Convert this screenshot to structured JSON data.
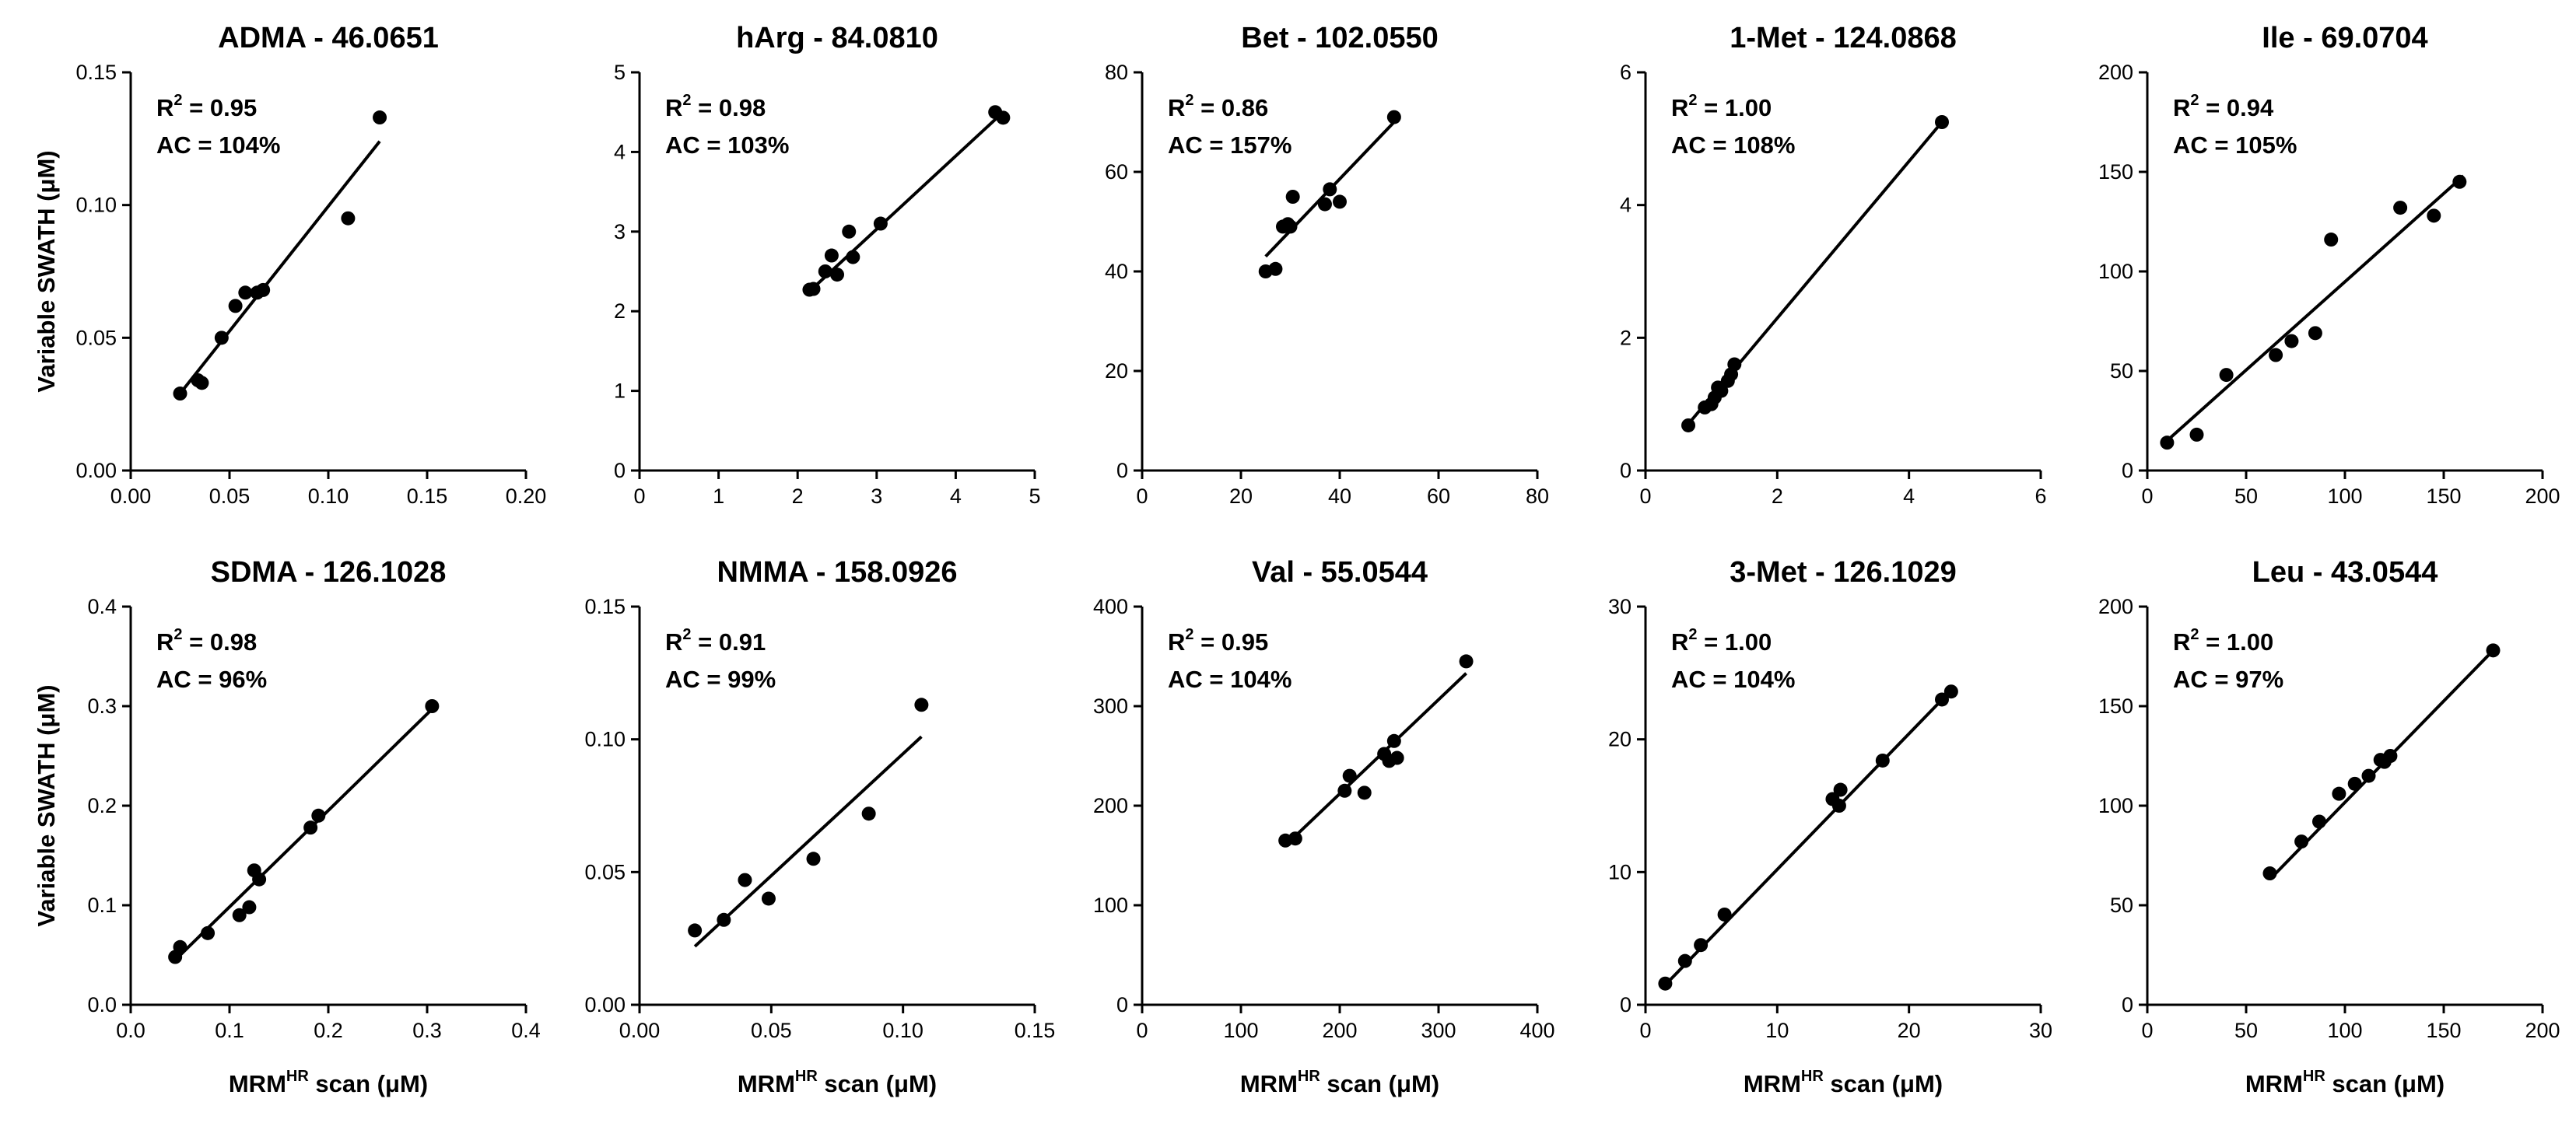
{
  "figure": {
    "xlabel_main": "MRM",
    "xlabel_sup": "HR",
    "xlabel_rest": " scan (μM)",
    "ylabel": "Variable SWATH (μM)"
  },
  "chart_data": [
    {
      "type": "scatter",
      "title": "ADMA - 46.0651",
      "r2_label": "R",
      "r2_sup": "2",
      "r2_value": " = 0.95",
      "ac": "AC = 104%",
      "xlim": [
        0,
        0.2
      ],
      "xticks": [
        0,
        0.05,
        0.1,
        0.15,
        0.2
      ],
      "xtick_labels": [
        "0.00",
        "0.05",
        "0.10",
        "0.15",
        "0.20"
      ],
      "ylim": [
        0,
        0.15
      ],
      "yticks": [
        0,
        0.05,
        0.1,
        0.15
      ],
      "ytick_labels": [
        "0.00",
        "0.05",
        "0.10",
        "0.15"
      ],
      "x": [
        0.025,
        0.034,
        0.036,
        0.046,
        0.053,
        0.058,
        0.064,
        0.067,
        0.11,
        0.126
      ],
      "y": [
        0.029,
        0.034,
        0.033,
        0.05,
        0.062,
        0.067,
        0.067,
        0.068,
        0.095,
        0.133
      ],
      "fit_x": [
        0.025,
        0.126
      ],
      "fit_y": [
        0.029,
        0.124
      ]
    },
    {
      "type": "scatter",
      "title": "hArg - 84.0810",
      "r2_label": "R",
      "r2_sup": "2",
      "r2_value": " = 0.98",
      "ac": "AC = 103%",
      "xlim": [
        0,
        5
      ],
      "xticks": [
        0,
        1,
        2,
        3,
        4,
        5
      ],
      "xtick_labels": [
        "0",
        "1",
        "2",
        "3",
        "4",
        "5"
      ],
      "ylim": [
        0,
        5
      ],
      "yticks": [
        0,
        1,
        2,
        3,
        4,
        5
      ],
      "ytick_labels": [
        "0",
        "1",
        "2",
        "3",
        "4",
        "5"
      ],
      "x": [
        2.15,
        2.2,
        2.35,
        2.43,
        2.5,
        2.65,
        2.7,
        3.05,
        4.5,
        4.6
      ],
      "y": [
        2.27,
        2.28,
        2.5,
        2.7,
        2.46,
        3.0,
        2.68,
        3.1,
        4.5,
        4.43
      ],
      "fit_x": [
        2.15,
        4.6
      ],
      "fit_y": [
        2.25,
        4.5
      ]
    },
    {
      "type": "scatter",
      "title": "Bet - 102.0550",
      "r2_label": "R",
      "r2_sup": "2",
      "r2_value": " = 0.86",
      "ac": "AC = 157%",
      "xlim": [
        0,
        80
      ],
      "xticks": [
        0,
        20,
        40,
        60,
        80
      ],
      "xtick_labels": [
        "0",
        "20",
        "40",
        "60",
        "80"
      ],
      "ylim": [
        0,
        80
      ],
      "yticks": [
        0,
        20,
        40,
        60,
        80
      ],
      "ytick_labels": [
        "0",
        "20",
        "40",
        "60",
        "80"
      ],
      "x": [
        25,
        27,
        28.5,
        29.5,
        30,
        30.5,
        37,
        38,
        40,
        51
      ],
      "y": [
        40,
        40.5,
        49,
        49.5,
        49,
        55,
        53.5,
        56.5,
        54,
        71
      ],
      "fit_x": [
        25,
        51
      ],
      "fit_y": [
        43,
        70
      ]
    },
    {
      "type": "scatter",
      "title": "1-Met - 124.0868",
      "r2_label": "R",
      "r2_sup": "2",
      "r2_value": " = 1.00",
      "ac": "AC = 108%",
      "xlim": [
        0,
        6
      ],
      "xticks": [
        0,
        2,
        4,
        6
      ],
      "xtick_labels": [
        "0",
        "2",
        "4",
        "6"
      ],
      "ylim": [
        0,
        6
      ],
      "yticks": [
        0,
        2,
        4,
        6
      ],
      "ytick_labels": [
        "0",
        "2",
        "4",
        "6"
      ],
      "x": [
        0.65,
        0.9,
        1.0,
        1.05,
        1.1,
        1.15,
        1.25,
        1.3,
        1.35,
        4.5
      ],
      "y": [
        0.68,
        0.95,
        1.0,
        1.1,
        1.25,
        1.2,
        1.35,
        1.45,
        1.6,
        5.25
      ],
      "fit_x": [
        0.65,
        4.5
      ],
      "fit_y": [
        0.7,
        5.25
      ]
    },
    {
      "type": "scatter",
      "title": "Ile - 69.0704",
      "r2_label": "R",
      "r2_sup": "2",
      "r2_value": " = 0.94",
      "ac": "AC = 105%",
      "xlim": [
        0,
        200
      ],
      "xticks": [
        0,
        50,
        100,
        150,
        200
      ],
      "xtick_labels": [
        "0",
        "50",
        "100",
        "150",
        "200"
      ],
      "ylim": [
        0,
        200
      ],
      "yticks": [
        0,
        50,
        100,
        150,
        200
      ],
      "ytick_labels": [
        "0",
        "50",
        "100",
        "150",
        "200"
      ],
      "x": [
        10,
        25,
        40,
        65,
        73,
        85,
        93,
        128,
        145,
        158
      ],
      "y": [
        14,
        18,
        48,
        58,
        65,
        69,
        116,
        132,
        128,
        145
      ],
      "fit_x": [
        10,
        160
      ],
      "fit_y": [
        15,
        148
      ]
    },
    {
      "type": "scatter",
      "title": "SDMA - 126.1028",
      "r2_label": "R",
      "r2_sup": "2",
      "r2_value": " = 0.98",
      "ac": "AC = 96%",
      "xlim": [
        0,
        0.4
      ],
      "xticks": [
        0,
        0.1,
        0.2,
        0.3,
        0.4
      ],
      "xtick_labels": [
        "0.0",
        "0.1",
        "0.2",
        "0.3",
        "0.4"
      ],
      "ylim": [
        0,
        0.4
      ],
      "yticks": [
        0,
        0.1,
        0.2,
        0.3,
        0.4
      ],
      "ytick_labels": [
        "0.0",
        "0.1",
        "0.2",
        "0.3",
        "0.4"
      ],
      "x": [
        0.045,
        0.05,
        0.078,
        0.11,
        0.12,
        0.125,
        0.13,
        0.182,
        0.19,
        0.305
      ],
      "y": [
        0.048,
        0.058,
        0.072,
        0.09,
        0.098,
        0.135,
        0.126,
        0.178,
        0.19,
        0.3
      ],
      "fit_x": [
        0.045,
        0.305
      ],
      "fit_y": [
        0.045,
        0.297
      ]
    },
    {
      "type": "scatter",
      "title": "NMMA - 158.0926",
      "r2_label": "R",
      "r2_sup": "2",
      "r2_value": " = 0.91",
      "ac": "AC = 99%",
      "xlim": [
        0,
        0.15
      ],
      "xticks": [
        0,
        0.05,
        0.1,
        0.15
      ],
      "xtick_labels": [
        "0.00",
        "0.05",
        "0.10",
        "0.15"
      ],
      "ylim": [
        0,
        0.15
      ],
      "yticks": [
        0,
        0.05,
        0.1,
        0.15
      ],
      "ytick_labels": [
        "0.00",
        "0.05",
        "0.10",
        "0.15"
      ],
      "x": [
        0.021,
        0.032,
        0.04,
        0.049,
        0.066,
        0.087,
        0.107
      ],
      "y": [
        0.028,
        0.032,
        0.047,
        0.04,
        0.055,
        0.072,
        0.113
      ],
      "fit_x": [
        0.021,
        0.107
      ],
      "fit_y": [
        0.022,
        0.101
      ]
    },
    {
      "type": "scatter",
      "title": "Val - 55.0544",
      "r2_label": "R",
      "r2_sup": "2",
      "r2_value": " = 0.95",
      "ac": "AC = 104%",
      "xlim": [
        0,
        400
      ],
      "xticks": [
        0,
        100,
        200,
        300,
        400
      ],
      "xtick_labels": [
        "0",
        "100",
        "200",
        "300",
        "400"
      ],
      "ylim": [
        0,
        400
      ],
      "yticks": [
        0,
        100,
        200,
        300,
        400
      ],
      "ytick_labels": [
        "0",
        "100",
        "200",
        "300",
        "400"
      ],
      "x": [
        145,
        155,
        205,
        210,
        225,
        245,
        250,
        255,
        258,
        328
      ],
      "y": [
        165,
        167,
        215,
        230,
        213,
        252,
        245,
        265,
        248,
        345
      ],
      "fit_x": [
        145,
        328
      ],
      "fit_y": [
        160,
        333
      ]
    },
    {
      "type": "scatter",
      "title": "3-Met - 126.1029",
      "r2_label": "R",
      "r2_sup": "2",
      "r2_value": " = 1.00",
      "ac": "AC = 104%",
      "xlim": [
        0,
        30
      ],
      "xticks": [
        0,
        10,
        20,
        30
      ],
      "xtick_labels": [
        "0",
        "10",
        "20",
        "30"
      ],
      "ylim": [
        0,
        30
      ],
      "yticks": [
        0,
        10,
        20,
        30
      ],
      "ytick_labels": [
        "0",
        "10",
        "20",
        "30"
      ],
      "x": [
        1.5,
        3,
        4.2,
        6,
        14.2,
        14.7,
        14.8,
        18,
        22.5,
        23.2
      ],
      "y": [
        1.6,
        3.3,
        4.5,
        6.8,
        15.5,
        15,
        16.2,
        18.4,
        23,
        23.6
      ],
      "fit_x": [
        1.5,
        23.2
      ],
      "fit_y": [
        1.5,
        23.7
      ]
    },
    {
      "type": "scatter",
      "title": "Leu - 43.0544",
      "r2_label": "R",
      "r2_sup": "2",
      "r2_value": " = 1.00",
      "ac": "AC = 97%",
      "xlim": [
        0,
        200
      ],
      "xticks": [
        0,
        50,
        100,
        150,
        200
      ],
      "xtick_labels": [
        "0",
        "50",
        "100",
        "150",
        "200"
      ],
      "ylim": [
        0,
        200
      ],
      "yticks": [
        0,
        50,
        100,
        150,
        200
      ],
      "ytick_labels": [
        "0",
        "50",
        "100",
        "150",
        "200"
      ],
      "x": [
        62,
        78,
        87,
        97,
        105,
        112,
        118,
        120,
        123,
        175
      ],
      "y": [
        66,
        82,
        92,
        106,
        111,
        115,
        123,
        122,
        125,
        178
      ],
      "fit_x": [
        62,
        175
      ],
      "fit_y": [
        63,
        178
      ]
    }
  ]
}
